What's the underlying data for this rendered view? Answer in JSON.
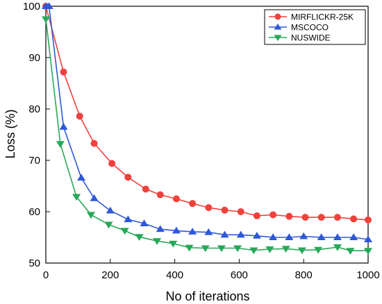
{
  "chart_data": {
    "type": "line",
    "xlabel": "No of iterations",
    "ylabel": "Loss (%)",
    "xlim": [
      0,
      1000
    ],
    "ylim": [
      50,
      100
    ],
    "xticks": [
      0,
      200,
      400,
      600,
      800,
      1000
    ],
    "yticks": [
      50,
      60,
      70,
      80,
      90,
      100
    ],
    "legend_position": "top-right",
    "grid": false,
    "series": [
      {
        "name": "MIRFLICKR-25K",
        "color": "#f0413c",
        "marker": "circle",
        "x": [
          0,
          55,
          105,
          150,
          205,
          255,
          310,
          355,
          405,
          455,
          505,
          555,
          605,
          655,
          705,
          755,
          805,
          855,
          905,
          955,
          1000
        ],
        "y": [
          100,
          87.2,
          78.6,
          73.3,
          69.4,
          66.7,
          64.4,
          63.3,
          62.5,
          61.6,
          60.8,
          60.3,
          60.0,
          59.2,
          59.4,
          59.1,
          58.9,
          58.9,
          58.9,
          58.6,
          58.4
        ]
      },
      {
        "name": "MSCOCO",
        "color": "#2f58d6",
        "marker": "triangle-up",
        "x": [
          0,
          10,
          55,
          110,
          150,
          200,
          255,
          305,
          355,
          405,
          455,
          505,
          555,
          605,
          655,
          705,
          755,
          800,
          855,
          905,
          955,
          1000
        ],
        "y": [
          100,
          100,
          76.5,
          66.6,
          62.6,
          60.2,
          58.5,
          57.7,
          56.6,
          56.3,
          56.1,
          56.0,
          55.5,
          55.5,
          55.3,
          55.0,
          55.0,
          55.2,
          55.0,
          55.0,
          55.0,
          54.6
        ]
      },
      {
        "name": "NUSWIDE",
        "color": "#27a858",
        "marker": "triangle-down",
        "x": [
          0,
          45,
          95,
          140,
          195,
          245,
          290,
          345,
          395,
          445,
          495,
          545,
          595,
          645,
          695,
          745,
          795,
          845,
          905,
          945,
          1000
        ],
        "y": [
          97.5,
          73.2,
          62.9,
          59.4,
          57.5,
          56.3,
          55.1,
          54.3,
          53.8,
          53.0,
          52.9,
          52.9,
          52.9,
          52.5,
          52.7,
          52.8,
          52.5,
          52.6,
          53.1,
          52.4,
          52.4
        ]
      }
    ]
  }
}
